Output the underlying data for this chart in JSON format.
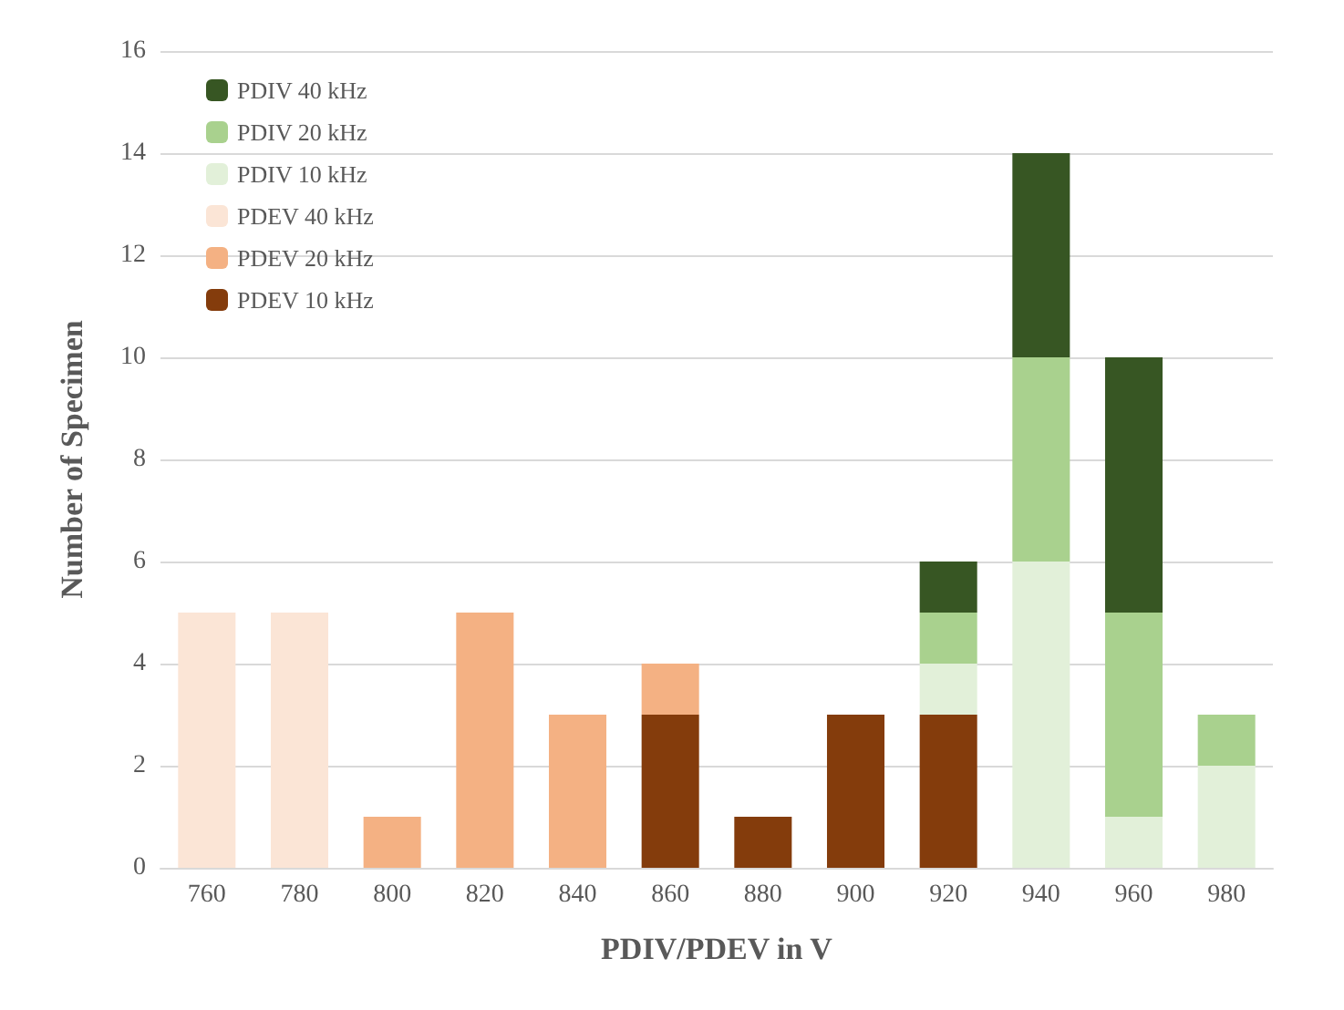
{
  "chart_data": {
    "type": "bar",
    "stacked": true,
    "xlabel": "PDIV/PDEV in V",
    "ylabel": "Number of Specimen",
    "categories": [
      "760",
      "780",
      "800",
      "820",
      "840",
      "860",
      "880",
      "900",
      "920",
      "940",
      "960",
      "980"
    ],
    "series": [
      {
        "name": "PDEV 10 kHz",
        "color": "#843c0c",
        "values": [
          null,
          null,
          null,
          null,
          null,
          3,
          1,
          3,
          3,
          null,
          null,
          null
        ]
      },
      {
        "name": "PDEV 20 kHz",
        "color": "#f4b183",
        "values": [
          null,
          null,
          1,
          5,
          3,
          1,
          null,
          null,
          null,
          null,
          null,
          null
        ]
      },
      {
        "name": "PDEV 40 kHz",
        "color": "#fbe5d6",
        "values": [
          5,
          5,
          null,
          null,
          null,
          null,
          null,
          null,
          null,
          null,
          null,
          null
        ]
      },
      {
        "name": "PDIV 10 kHz",
        "color": "#e2f0d9",
        "values": [
          null,
          null,
          null,
          null,
          null,
          null,
          null,
          null,
          1,
          6,
          1,
          2
        ]
      },
      {
        "name": "PDIV 20 kHz",
        "color": "#a9d18e",
        "values": [
          null,
          null,
          null,
          null,
          null,
          null,
          null,
          null,
          1,
          4,
          4,
          1
        ]
      },
      {
        "name": "PDIV 40 kHz",
        "color": "#375623",
        "values": [
          null,
          null,
          null,
          null,
          null,
          null,
          null,
          null,
          1,
          4,
          5,
          null
        ]
      }
    ],
    "ylim": [
      0,
      16
    ],
    "yticks": [
      0,
      2,
      4,
      6,
      8,
      10,
      12,
      14,
      16
    ],
    "grid": "y",
    "legend": "top left"
  }
}
